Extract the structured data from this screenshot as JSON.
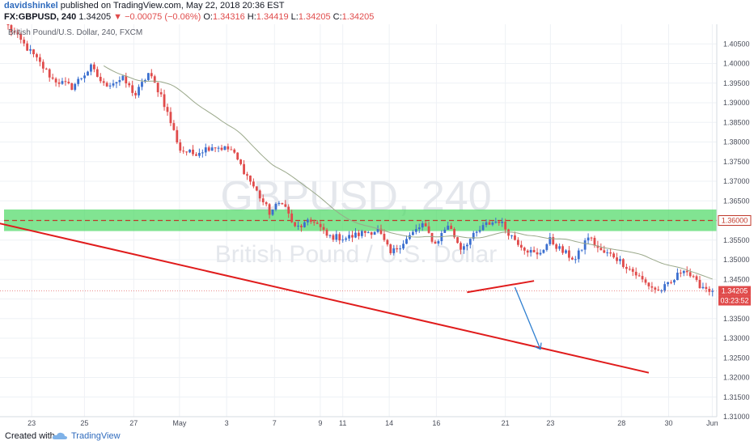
{
  "header": {
    "author": "davidshinkel",
    "published_text": "published on TradingView.com, May 22, 2018 20:36 EST",
    "symbol": "FX:GBPUSD, 240",
    "last": "1.34205",
    "change": "−0.00075 (−0.06%)",
    "ohlc": {
      "o": "1.34316",
      "h": "1.34419",
      "l": "1.34205",
      "c": "1.34205"
    },
    "ohlc_labels": {
      "o": "O:",
      "h": "H:",
      "l": "L:",
      "c": "C:"
    }
  },
  "legend": "British Pound/U.S. Dollar, 240, FXCM",
  "watermark": {
    "line1": "GBPUSD, 240",
    "line2": "British Pound / U.S. Dollar"
  },
  "badges": {
    "level": "1.36000",
    "price": "1.34205",
    "countdown": "03:23:52"
  },
  "footer": {
    "created": "Created with",
    "brand": "TradingView"
  },
  "colors": {
    "up": "#3b6fcf",
    "down": "#e04b4b",
    "zone": "#4cd964",
    "trend": "#e01c1c",
    "ma": "#9aa88a",
    "arrow": "#2f7fd0"
  },
  "chart_data": {
    "type": "candlestick",
    "ylim": [
      1.31,
      1.41
    ],
    "y_ticks": [
      "1.40500",
      "1.40000",
      "1.39500",
      "1.39000",
      "1.38500",
      "1.38000",
      "1.37500",
      "1.37000",
      "1.36500",
      "1.36000",
      "1.35500",
      "1.35000",
      "1.34500",
      "1.34000",
      "1.33500",
      "1.33000",
      "1.32500",
      "1.32000",
      "1.31500",
      "1.31000"
    ],
    "x_ticks": [
      {
        "label": "23",
        "pos": 0.045
      },
      {
        "label": "25",
        "pos": 0.12
      },
      {
        "label": "27",
        "pos": 0.19
      },
      {
        "label": "May",
        "pos": 0.255
      },
      {
        "label": "3",
        "pos": 0.322
      },
      {
        "label": "7",
        "pos": 0.39
      },
      {
        "label": "9",
        "pos": 0.455
      },
      {
        "label": "11",
        "pos": 0.487
      },
      {
        "label": "14",
        "pos": 0.553
      },
      {
        "label": "16",
        "pos": 0.62
      },
      {
        "label": "21",
        "pos": 0.718
      },
      {
        "label": "23",
        "pos": 0.782
      },
      {
        "label": "28",
        "pos": 0.883
      },
      {
        "label": "30",
        "pos": 0.95
      },
      {
        "label": "Jun",
        "pos": 1.012
      }
    ],
    "resistance_level": 1.36,
    "zone": [
      1.3573,
      1.3628
    ],
    "waypoints": [
      [
        0,
        1.4095
      ],
      [
        8,
        1.402
      ],
      [
        14,
        1.396
      ],
      [
        20,
        1.394
      ],
      [
        26,
        1.399
      ],
      [
        30,
        1.3945
      ],
      [
        36,
        1.396
      ],
      [
        40,
        1.392
      ],
      [
        44,
        1.3975
      ],
      [
        48,
        1.392
      ],
      [
        54,
        1.378
      ],
      [
        58,
        1.377
      ],
      [
        64,
        1.379
      ],
      [
        70,
        1.378
      ],
      [
        76,
        1.37
      ],
      [
        82,
        1.362
      ],
      [
        86,
        1.365
      ],
      [
        90,
        1.358
      ],
      [
        96,
        1.36
      ],
      [
        100,
        1.356
      ],
      [
        106,
        1.3555
      ],
      [
        112,
        1.357
      ],
      [
        116,
        1.3575
      ],
      [
        120,
        1.3515
      ],
      [
        126,
        1.356
      ],
      [
        130,
        1.359
      ],
      [
        134,
        1.354
      ],
      [
        138,
        1.359
      ],
      [
        142,
        1.353
      ],
      [
        146,
        1.356
      ],
      [
        150,
        1.359
      ],
      [
        154,
        1.36
      ],
      [
        158,
        1.356
      ],
      [
        162,
        1.353
      ],
      [
        166,
        1.351
      ],
      [
        170,
        1.355
      ],
      [
        174,
        1.352
      ],
      [
        178,
        1.35
      ],
      [
        182,
        1.356
      ],
      [
        186,
        1.352
      ],
      [
        190,
        1.351
      ],
      [
        196,
        1.347
      ],
      [
        200,
        1.344
      ],
      [
        204,
        1.342
      ],
      [
        208,
        1.344
      ],
      [
        212,
        1.348
      ],
      [
        216,
        1.344
      ],
      [
        221,
        1.342
      ]
    ],
    "candle_count": 222,
    "last_close": 1.34205,
    "drawings": {
      "lower_trendline": [
        [
          -4,
          1.3595
        ],
        [
          201,
          1.3212
        ]
      ],
      "wedge_line": [
        [
          144,
          1.3417
        ],
        [
          165,
          1.3446
        ]
      ],
      "target_arrow": [
        [
          159,
          1.343
        ],
        [
          167,
          1.3272
        ]
      ]
    }
  }
}
